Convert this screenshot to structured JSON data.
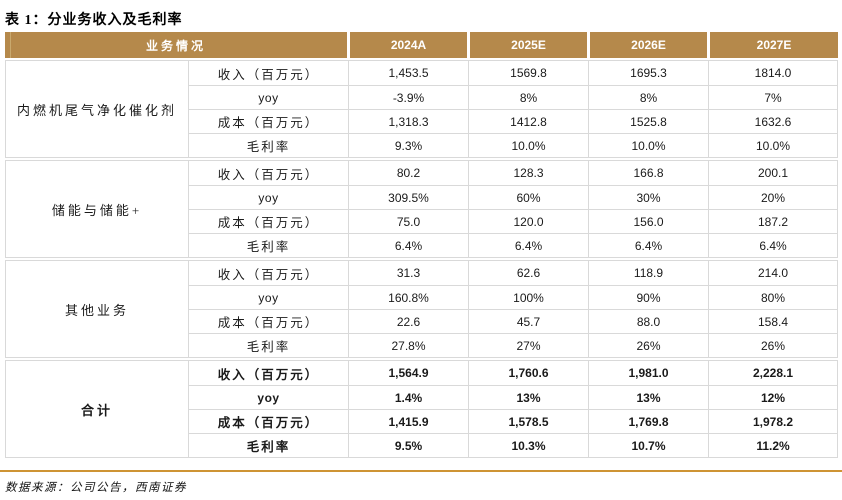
{
  "page": {
    "title": "表 1：分业务收入及毛利率",
    "footer": "数据来源：公司公告，西南证券"
  },
  "colors": {
    "header_bg": "#B5894B",
    "header_text": "#FFFFFF",
    "cell_border": "#D9D9D9",
    "bottom_rule": "#CE9434"
  },
  "table": {
    "header": {
      "business_col": "业务情况",
      "years": [
        "2024A",
        "2025E",
        "2026E",
        "2027E"
      ]
    },
    "metric_labels": [
      "收入（百万元）",
      "yoy",
      "成本（百万元）",
      "毛利率"
    ],
    "groups": [
      {
        "name": "内燃机尾气净化催化剂",
        "bold": false,
        "rows": [
          [
            "1,453.5",
            "1569.8",
            "1695.3",
            "1814.0"
          ],
          [
            "-3.9%",
            "8%",
            "8%",
            "7%"
          ],
          [
            "1,318.3",
            "1412.8",
            "1525.8",
            "1632.6"
          ],
          [
            "9.3%",
            "10.0%",
            "10.0%",
            "10.0%"
          ]
        ]
      },
      {
        "name": "储能与储能+",
        "bold": false,
        "rows": [
          [
            "80.2",
            "128.3",
            "166.8",
            "200.1"
          ],
          [
            "309.5%",
            "60%",
            "30%",
            "20%"
          ],
          [
            "75.0",
            "120.0",
            "156.0",
            "187.2"
          ],
          [
            "6.4%",
            "6.4%",
            "6.4%",
            "6.4%"
          ]
        ]
      },
      {
        "name": "其他业务",
        "bold": false,
        "rows": [
          [
            "31.3",
            "62.6",
            "118.9",
            "214.0"
          ],
          [
            "160.8%",
            "100%",
            "90%",
            "80%"
          ],
          [
            "22.6",
            "45.7",
            "88.0",
            "158.4"
          ],
          [
            "27.8%",
            "27%",
            "26%",
            "26%"
          ]
        ]
      },
      {
        "name": "合计",
        "bold": true,
        "rows": [
          [
            "1,564.9",
            "1,760.6",
            "1,981.0",
            "2,228.1"
          ],
          [
            "1.4%",
            "13%",
            "13%",
            "12%"
          ],
          [
            "1,415.9",
            "1,578.5",
            "1,769.8",
            "1,978.2"
          ],
          [
            "9.5%",
            "10.3%",
            "10.7%",
            "11.2%"
          ]
        ]
      }
    ]
  }
}
